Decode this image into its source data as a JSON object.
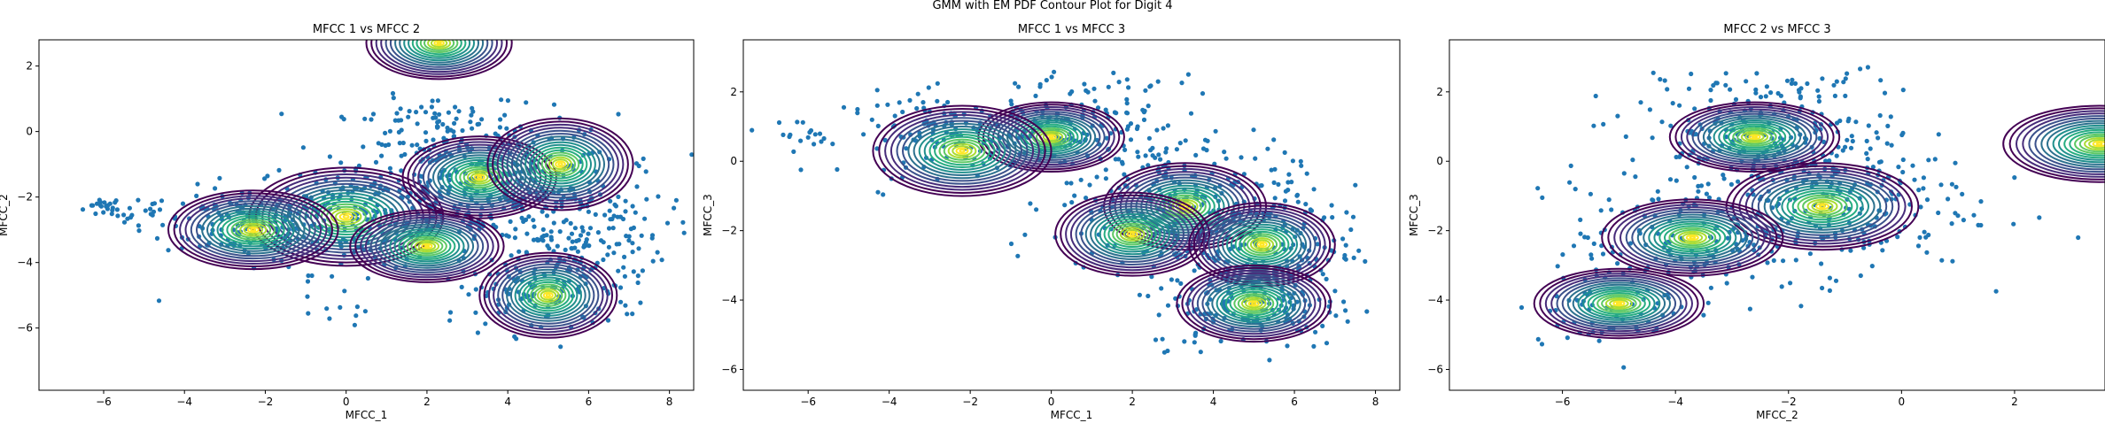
{
  "figure": {
    "suptitle": "GMM with EM PDF Contour Plot for Digit 4"
  },
  "colors": {
    "points": "#1f77b4",
    "contour_colormap": [
      "#440154",
      "#472c7a",
      "#3b518b",
      "#2c718e",
      "#21908d",
      "#27ad81",
      "#5cc863",
      "#aadc32",
      "#fde725"
    ]
  },
  "chart_data": [
    {
      "type": "contour",
      "title": "MFCC 1 vs MFCC 2",
      "xlabel": "MFCC_1",
      "ylabel": "MFCC_2",
      "xlim": [
        -7.6,
        8.6
      ],
      "ylim": [
        -7.9,
        2.8
      ],
      "xticks": [
        -6,
        -4,
        -2,
        0,
        2,
        4,
        6,
        8
      ],
      "yticks": [
        -6,
        -4,
        -2,
        0,
        2
      ],
      "xtick_labels": [
        "−6",
        "−4",
        "−2",
        "0",
        "2",
        "4",
        "6",
        "8"
      ],
      "ytick_labels": [
        "−6",
        "−4",
        "−2",
        "0",
        "2"
      ],
      "components": [
        {
          "mean": [
            2.3,
            2.7
          ],
          "sx": 1.8,
          "sy": 1.1
        },
        {
          "mean": [
            0.0,
            -2.6
          ],
          "sx": 2.4,
          "sy": 1.5
        },
        {
          "mean": [
            3.3,
            -1.4
          ],
          "sx": 1.9,
          "sy": 1.25
        },
        {
          "mean": [
            2.0,
            -3.5
          ],
          "sx": 1.9,
          "sy": 1.1
        },
        {
          "mean": [
            5.0,
            -5.0
          ],
          "sx": 1.7,
          "sy": 1.3
        },
        {
          "mean": [
            -2.3,
            -3.0
          ],
          "sx": 2.1,
          "sy": 1.2
        },
        {
          "mean": [
            5.3,
            -1.0
          ],
          "sx": 1.8,
          "sy": 1.4
        }
      ],
      "series": [
        {
          "mean": [
            -6.0,
            -2.3
          ],
          "sx": 0.25,
          "sy": 0.15,
          "n": 18
        },
        {
          "mean": [
            -5.0,
            -2.5
          ],
          "sx": 0.4,
          "sy": 0.2,
          "n": 20
        },
        {
          "mean": [
            -2.5,
            -2.8
          ],
          "sx": 1.0,
          "sy": 0.55,
          "n": 140
        },
        {
          "mean": [
            0.5,
            -2.5
          ],
          "sx": 1.4,
          "sy": 0.9,
          "n": 200
        },
        {
          "mean": [
            3.5,
            -1.5
          ],
          "sx": 1.6,
          "sy": 1.0,
          "n": 300
        },
        {
          "mean": [
            5.5,
            -3.2
          ],
          "sx": 1.2,
          "sy": 1.1,
          "n": 200
        },
        {
          "mean": [
            4.8,
            -5.0
          ],
          "sx": 1.0,
          "sy": 0.6,
          "n": 80
        },
        {
          "mean": [
            2.0,
            0.4
          ],
          "sx": 1.2,
          "sy": 0.35,
          "n": 50
        },
        {
          "mean": [
            0.0,
            -5.6
          ],
          "sx": 0.6,
          "sy": 0.25,
          "n": 8
        },
        {
          "mean": [
            -4.8,
            -5.2
          ],
          "sx": 0.1,
          "sy": 0.1,
          "n": 1
        }
      ]
    },
    {
      "type": "contour",
      "title": "MFCC 1 vs MFCC 3",
      "xlabel": "MFCC_1",
      "ylabel": "MFCC_3",
      "xlim": [
        -7.6,
        8.6
      ],
      "ylim": [
        -6.6,
        3.5
      ],
      "xticks": [
        -6,
        -4,
        -2,
        0,
        2,
        4,
        6,
        8
      ],
      "yticks": [
        -6,
        -4,
        -2,
        0,
        2
      ],
      "xtick_labels": [
        "−6",
        "−4",
        "−2",
        "0",
        "2",
        "4",
        "6",
        "8"
      ],
      "ytick_labels": [
        "−6",
        "−4",
        "−2",
        "0",
        "2"
      ],
      "components": [
        {
          "mean": [
            0.0,
            0.7
          ],
          "sx": 1.8,
          "sy": 1.0
        },
        {
          "mean": [
            -2.2,
            0.3
          ],
          "sx": 2.2,
          "sy": 1.3
        },
        {
          "mean": [
            3.3,
            -1.3
          ],
          "sx": 2.0,
          "sy": 1.25
        },
        {
          "mean": [
            2.0,
            -2.1
          ],
          "sx": 1.9,
          "sy": 1.2
        },
        {
          "mean": [
            5.2,
            -2.4
          ],
          "sx": 1.8,
          "sy": 1.2
        },
        {
          "mean": [
            5.0,
            -4.1
          ],
          "sx": 1.9,
          "sy": 1.1
        }
      ],
      "series": [
        {
          "mean": [
            -6.2,
            0.8
          ],
          "sx": 0.3,
          "sy": 0.2,
          "n": 15
        },
        {
          "mean": [
            -2.5,
            0.8
          ],
          "sx": 1.3,
          "sy": 0.6,
          "n": 120
        },
        {
          "mean": [
            0.5,
            0.8
          ],
          "sx": 1.2,
          "sy": 0.6,
          "n": 150
        },
        {
          "mean": [
            3.0,
            -1.2
          ],
          "sx": 1.5,
          "sy": 1.0,
          "n": 250
        },
        {
          "mean": [
            5.5,
            -2.5
          ],
          "sx": 1.0,
          "sy": 0.9,
          "n": 150
        },
        {
          "mean": [
            5.0,
            -4.2
          ],
          "sx": 1.3,
          "sy": 0.6,
          "n": 150
        },
        {
          "mean": [
            1.0,
            2.2
          ],
          "sx": 1.0,
          "sy": 0.3,
          "n": 20
        }
      ]
    },
    {
      "type": "contour",
      "title": "MFCC 2 vs MFCC 3",
      "xlabel": "MFCC_2",
      "ylabel": "MFCC_3",
      "xlim": [
        -8.0,
        3.6
      ],
      "ylim": [
        -6.6,
        3.5
      ],
      "xticks": [
        -6,
        -4,
        -2,
        0,
        2
      ],
      "yticks": [
        -6,
        -4,
        -2,
        0,
        2
      ],
      "xtick_labels": [
        "−6",
        "−4",
        "−2",
        "0",
        "2"
      ],
      "ytick_labels": [
        "−6",
        "−4",
        "−2",
        "0",
        "2"
      ],
      "components": [
        {
          "mean": [
            -2.6,
            0.7
          ],
          "sx": 1.5,
          "sy": 1.0
        },
        {
          "mean": [
            -1.4,
            -1.3
          ],
          "sx": 1.7,
          "sy": 1.25
        },
        {
          "mean": [
            -3.7,
            -2.2
          ],
          "sx": 1.6,
          "sy": 1.1
        },
        {
          "mean": [
            -5.0,
            -4.1
          ],
          "sx": 1.5,
          "sy": 1.0
        },
        {
          "mean": [
            3.5,
            0.5
          ],
          "sx": 1.7,
          "sy": 1.1
        }
      ],
      "series": [
        {
          "mean": [
            -2.5,
            0.8
          ],
          "sx": 1.2,
          "sy": 0.7,
          "n": 200
        },
        {
          "mean": [
            -1.5,
            -1.2
          ],
          "sx": 1.4,
          "sy": 1.0,
          "n": 250
        },
        {
          "mean": [
            -3.8,
            -2.3
          ],
          "sx": 1.0,
          "sy": 0.8,
          "n": 120
        },
        {
          "mean": [
            -5.0,
            -4.1
          ],
          "sx": 0.9,
          "sy": 0.6,
          "n": 60
        },
        {
          "mean": [
            -2.0,
            2.2
          ],
          "sx": 1.2,
          "sy": 0.25,
          "n": 30
        },
        {
          "mean": [
            -6.0,
            -0.8
          ],
          "sx": 0.3,
          "sy": 0.2,
          "n": 3
        }
      ]
    }
  ]
}
